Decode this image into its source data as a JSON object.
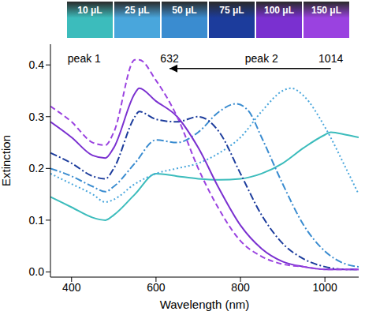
{
  "chart_data": {
    "type": "line",
    "x_label": "Wavelength (nm)",
    "y_label": "Extinction",
    "xlim": [
      350,
      1080
    ],
    "xticks": [
      400,
      600,
      800,
      1000
    ],
    "ylim": [
      -0.01,
      0.44
    ],
    "yticks": [
      {
        "value": 0,
        "label": "0.0"
      },
      0.1,
      0.2,
      0.3,
      0.4
    ],
    "series": [
      {
        "name": "10 μL",
        "color": "#3cbcbc",
        "line_style": "solid",
        "x": [
          350,
          400,
          450,
          480,
          500,
          550,
          600,
          650,
          700,
          750,
          800,
          850,
          900,
          950,
          1000,
          1014,
          1050,
          1080
        ],
        "values": [
          0.145,
          0.125,
          0.105,
          0.1,
          0.11,
          0.15,
          0.19,
          0.185,
          0.18,
          0.178,
          0.18,
          0.19,
          0.21,
          0.24,
          0.265,
          0.27,
          0.265,
          0.26
        ]
      },
      {
        "name": "25 μL",
        "color": "#49a6dc",
        "line_style": "dotted",
        "x": [
          350,
          400,
          450,
          480,
          500,
          550,
          600,
          650,
          700,
          750,
          800,
          850,
          900,
          920,
          950,
          1000,
          1050,
          1080
        ],
        "values": [
          0.19,
          0.17,
          0.15,
          0.135,
          0.14,
          0.17,
          0.19,
          0.2,
          0.21,
          0.23,
          0.26,
          0.31,
          0.35,
          0.355,
          0.34,
          0.28,
          0.2,
          0.15
        ]
      },
      {
        "name": "50 μL",
        "color": "#3a8cd0",
        "line_style": "dashdot",
        "x": [
          350,
          400,
          450,
          480,
          500,
          550,
          600,
          650,
          700,
          750,
          790,
          820,
          850,
          900,
          950,
          1000,
          1050,
          1080
        ],
        "values": [
          0.2,
          0.185,
          0.165,
          0.155,
          0.165,
          0.21,
          0.255,
          0.25,
          0.27,
          0.31,
          0.325,
          0.31,
          0.26,
          0.17,
          0.09,
          0.04,
          0.015,
          0.01
        ]
      },
      {
        "name": "75 μL",
        "color": "#1c3c9c",
        "line_style": "dashdot",
        "x": [
          350,
          400,
          450,
          480,
          500,
          550,
          560,
          600,
          650,
          700,
          750,
          800,
          850,
          900,
          950,
          1000,
          1050,
          1080
        ],
        "values": [
          0.23,
          0.21,
          0.185,
          0.18,
          0.2,
          0.3,
          0.31,
          0.295,
          0.29,
          0.3,
          0.27,
          0.19,
          0.11,
          0.055,
          0.025,
          0.01,
          0.005,
          0.005
        ]
      },
      {
        "name": "100 μL",
        "color": "#7a30d0",
        "line_style": "solid",
        "x": [
          350,
          400,
          450,
          480,
          500,
          550,
          560,
          600,
          650,
          700,
          750,
          800,
          850,
          900,
          950,
          1000,
          1050,
          1080
        ],
        "values": [
          0.29,
          0.26,
          0.225,
          0.22,
          0.24,
          0.345,
          0.355,
          0.33,
          0.3,
          0.24,
          0.16,
          0.09,
          0.045,
          0.02,
          0.01,
          0.005,
          0.005,
          0.005
        ]
      },
      {
        "name": "150 μL",
        "color": "#9a42e0",
        "line_style": "dashed",
        "x": [
          350,
          400,
          450,
          480,
          500,
          550,
          560,
          600,
          650,
          700,
          750,
          800,
          850,
          900,
          950,
          1000,
          1050,
          1080
        ],
        "values": [
          0.32,
          0.29,
          0.25,
          0.245,
          0.27,
          0.41,
          0.41,
          0.37,
          0.3,
          0.2,
          0.12,
          0.06,
          0.03,
          0.015,
          0.01,
          0.005,
          0.005,
          0.005
        ]
      }
    ],
    "annotations": [
      {
        "text": "peak 1",
        "x": 430,
        "y": 0.412
      },
      {
        "text": "632",
        "x": 632,
        "y": 0.412
      },
      {
        "text": "peak 2",
        "x": 850,
        "y": 0.412
      },
      {
        "text": "1014",
        "x": 1014,
        "y": 0.412
      }
    ],
    "arrow": {
      "from": 1014,
      "to": 632,
      "y": 0.393
    }
  }
}
